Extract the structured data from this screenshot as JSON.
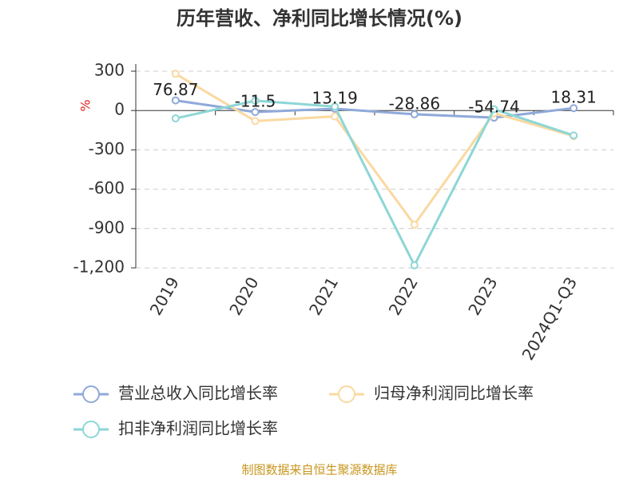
{
  "chart_data": {
    "type": "line",
    "title": "历年营收、净利同比增长情况(%)",
    "y_label": "%",
    "categories": [
      "2019",
      "2020",
      "2021",
      "2022",
      "2023",
      "2024Q1-Q3"
    ],
    "series": [
      {
        "name": "营业总收入同比增长率",
        "color": "#8fa9d9",
        "values": [
          76.87,
          -11.5,
          13.19,
          -28.86,
          -54.74,
          18.31
        ],
        "show_labels": true
      },
      {
        "name": "归母净利润同比增长率",
        "color": "#fad9a0",
        "values": [
          280,
          -80,
          -45,
          -870,
          -20,
          -195
        ]
      },
      {
        "name": "扣非净利润同比增长率",
        "color": "#8dd6d6",
        "values": [
          -60,
          75,
          30,
          -1180,
          10,
          -190
        ]
      }
    ],
    "ylim": [
      -1200,
      300
    ],
    "yticks": [
      300,
      0,
      -300,
      -600,
      -900,
      {
        "value": -1200,
        "label": "-1,200"
      }
    ],
    "grid": true,
    "source": "制图数据来自恒生聚源数据库"
  }
}
